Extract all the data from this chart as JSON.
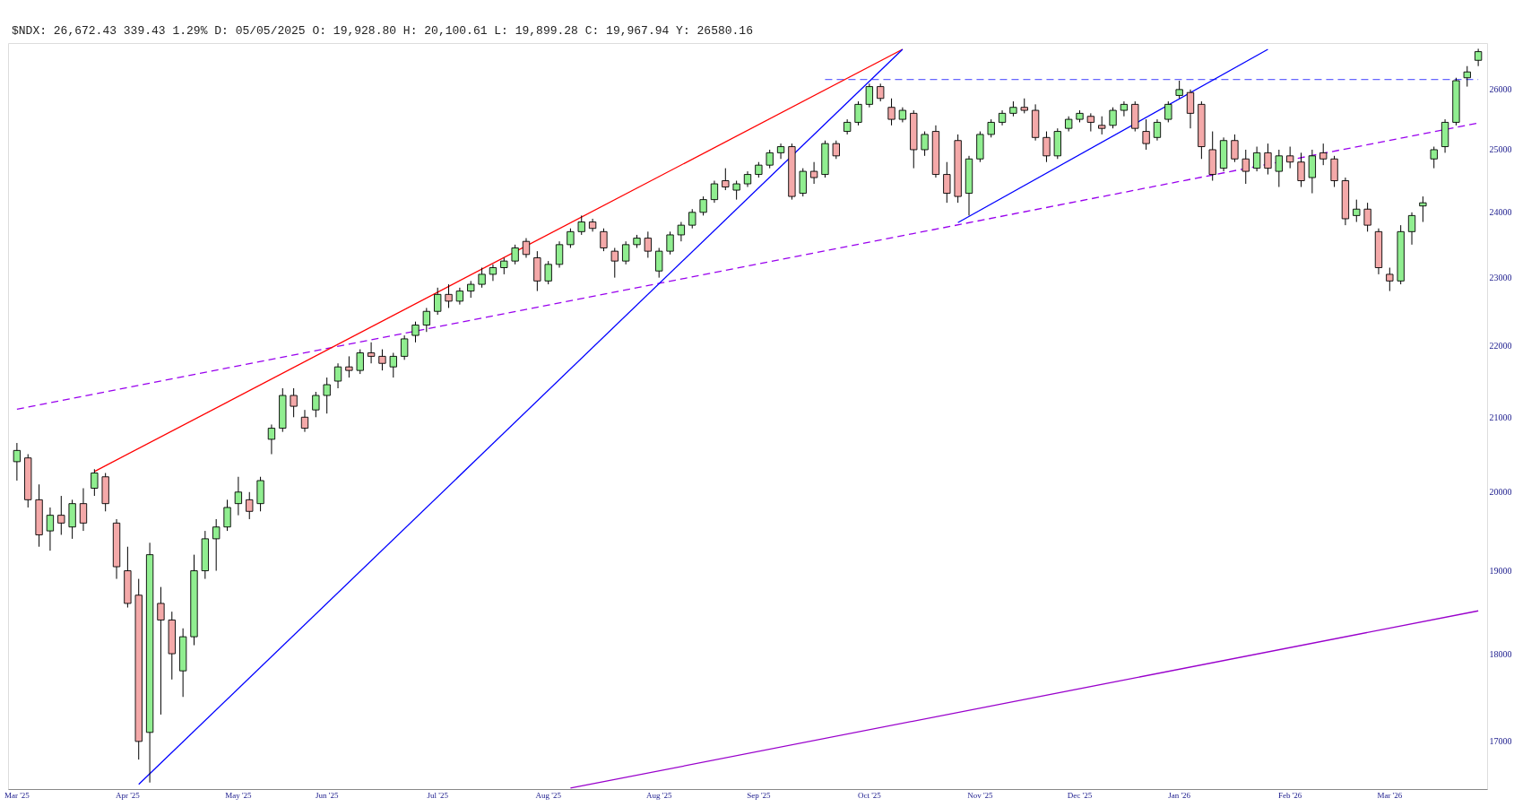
{
  "chart_data": {
    "type": "candlestick",
    "log": true,
    "annotations": [
      "$NDX: 26,672.43 339.43 1.29% D: 05/05/2025 O: 19,928.80 H: 20,100.61 L: 19,899.28 C: 19,967.94 Y:  26580.16"
    ],
    "categories": [
      "Mar '25",
      null,
      null,
      null,
      null,
      null,
      null,
      null,
      null,
      null,
      "Apr '25",
      null,
      null,
      null,
      null,
      null,
      null,
      null,
      null,
      null,
      "May '25",
      null,
      null,
      null,
      null,
      null,
      null,
      null,
      "Jun '25",
      null,
      null,
      null,
      null,
      null,
      null,
      null,
      null,
      null,
      "Jul '25",
      null,
      null,
      null,
      null,
      null,
      null,
      null,
      null,
      null,
      "Aug '25",
      null,
      null,
      null,
      null,
      null,
      null,
      null,
      null,
      null,
      "Aug '25",
      null,
      null,
      null,
      null,
      null,
      null,
      null,
      null,
      "Sep '25",
      null,
      null,
      null,
      null,
      null,
      null,
      null,
      null,
      null,
      "Oct '25",
      null,
      null,
      null,
      null,
      null,
      null,
      null,
      null,
      null,
      "Nov '25",
      null,
      null,
      null,
      null,
      null,
      null,
      null,
      null,
      "Dec '25",
      null,
      null,
      null,
      null,
      null,
      null,
      null,
      null,
      "Jan '26",
      null,
      null,
      null,
      null,
      null,
      null,
      null,
      null,
      null,
      "Feb '26",
      null,
      null,
      null,
      null,
      null,
      null,
      null,
      null,
      "Mar '26",
      null,
      null,
      null,
      null,
      null,
      null,
      null,
      null
    ],
    "ylim": [
      16480,
      26800
    ],
    "yticks": [
      17000,
      18000,
      19000,
      20000,
      21000,
      22000,
      23000,
      24000,
      25000,
      26000
    ],
    "series": [
      {
        "type": "line",
        "color": "#9900ee",
        "line_style": "dashed",
        "values": [
          21110,
          null,
          null,
          null,
          null,
          null,
          null,
          null,
          null,
          null,
          null,
          null,
          null,
          null,
          null,
          null,
          null,
          null,
          null,
          null,
          null,
          null,
          null,
          null,
          null,
          null,
          null,
          null,
          null,
          null,
          null,
          null,
          null,
          null,
          null,
          null,
          null,
          null,
          null,
          null,
          null,
          null,
          null,
          null,
          null,
          null,
          null,
          null,
          null,
          null,
          null,
          null,
          null,
          null,
          null,
          null,
          null,
          null,
          null,
          null,
          null,
          null,
          null,
          null,
          null,
          null,
          null,
          null,
          null,
          null,
          null,
          null,
          null,
          null,
          null,
          null,
          null,
          null,
          null,
          null,
          null,
          null,
          null,
          null,
          null,
          null,
          null,
          null,
          null,
          null,
          null,
          null,
          null,
          null,
          null,
          null,
          null,
          null,
          null,
          null,
          null,
          null,
          null,
          null,
          null,
          null,
          null,
          null,
          null,
          null,
          null,
          null,
          null,
          null,
          null,
          null,
          null,
          null,
          null,
          null,
          null,
          null,
          null,
          null,
          null,
          null,
          null,
          null,
          null,
          null,
          null,
          null,
          25440
        ]
      },
      {
        "type": "line",
        "color": "#9900cc",
        "line_style": "solid",
        "values": [
          null,
          null,
          null,
          null,
          null,
          null,
          null,
          null,
          null,
          null,
          null,
          null,
          null,
          null,
          null,
          null,
          null,
          null,
          null,
          null,
          null,
          null,
          null,
          null,
          null,
          null,
          null,
          null,
          null,
          null,
          null,
          null,
          null,
          null,
          null,
          null,
          null,
          null,
          null,
          null,
          null,
          null,
          null,
          null,
          null,
          null,
          null,
          null,
          null,
          null,
          16490,
          null,
          null,
          null,
          null,
          null,
          null,
          null,
          null,
          null,
          null,
          null,
          null,
          null,
          null,
          null,
          null,
          null,
          null,
          null,
          null,
          null,
          null,
          null,
          null,
          null,
          null,
          null,
          null,
          null,
          null,
          null,
          null,
          null,
          null,
          null,
          null,
          null,
          null,
          null,
          null,
          null,
          null,
          null,
          null,
          null,
          null,
          null,
          null,
          null,
          null,
          null,
          null,
          null,
          null,
          null,
          null,
          null,
          null,
          null,
          null,
          null,
          null,
          null,
          null,
          null,
          null,
          null,
          null,
          null,
          null,
          null,
          null,
          null,
          null,
          null,
          null,
          null,
          null,
          null,
          null,
          null,
          18510
        ]
      },
      {
        "type": "line",
        "color": "#6666ff",
        "line_style": "dashed",
        "values": [
          null,
          null,
          null,
          null,
          null,
          null,
          null,
          null,
          null,
          null,
          null,
          null,
          null,
          null,
          null,
          null,
          null,
          null,
          null,
          null,
          null,
          null,
          null,
          null,
          null,
          null,
          null,
          null,
          null,
          null,
          null,
          null,
          null,
          null,
          null,
          null,
          null,
          null,
          null,
          null,
          null,
          null,
          null,
          null,
          null,
          null,
          null,
          null,
          null,
          null,
          null,
          null,
          null,
          null,
          null,
          null,
          null,
          null,
          null,
          null,
          null,
          null,
          null,
          null,
          null,
          null,
          null,
          null,
          null,
          null,
          null,
          null,
          null,
          26170,
          null,
          null,
          null,
          null,
          null,
          null,
          null,
          null,
          null,
          null,
          null,
          null,
          null,
          null,
          null,
          null,
          null,
          null,
          null,
          null,
          null,
          null,
          null,
          null,
          null,
          null,
          null,
          null,
          null,
          null,
          null,
          null,
          null,
          null,
          null,
          null,
          null,
          null,
          null,
          null,
          null,
          null,
          null,
          null,
          null,
          null,
          null,
          null,
          null,
          null,
          null,
          null,
          null,
          null,
          null,
          null,
          null,
          null,
          26170
        ]
      },
      {
        "type": "line",
        "color": "#ff0000",
        "line_style": "solid",
        "values": [
          null,
          null,
          null,
          null,
          null,
          null,
          null,
          20270,
          null,
          null,
          null,
          null,
          null,
          null,
          null,
          null,
          null,
          null,
          null,
          null,
          null,
          null,
          null,
          null,
          null,
          null,
          null,
          null,
          null,
          null,
          null,
          null,
          null,
          null,
          null,
          null,
          null,
          null,
          null,
          null,
          null,
          null,
          null,
          null,
          null,
          null,
          null,
          null,
          null,
          null,
          null,
          null,
          null,
          null,
          null,
          null,
          null,
          null,
          null,
          null,
          null,
          null,
          null,
          null,
          null,
          null,
          null,
          null,
          null,
          null,
          null,
          null,
          null,
          null,
          null,
          null,
          null,
          null,
          null,
          null,
          26690,
          null,
          null,
          null,
          null,
          null,
          null,
          null,
          null,
          null,
          null,
          null,
          null,
          null,
          null,
          null,
          null,
          null,
          null,
          null,
          null,
          null,
          null,
          null,
          null,
          null,
          null,
          null,
          null,
          null,
          null,
          null,
          null,
          null,
          null,
          null,
          null,
          null,
          null,
          null,
          null,
          null,
          null,
          null,
          null,
          null,
          null,
          null,
          null,
          null,
          null,
          null,
          null
        ]
      },
      {
        "type": "line",
        "color": "#0000ff",
        "line_style": "solid",
        "values": [
          null,
          null,
          null,
          null,
          null,
          null,
          null,
          null,
          null,
          null,
          null,
          16530,
          null,
          null,
          null,
          null,
          null,
          null,
          null,
          null,
          null,
          null,
          null,
          null,
          null,
          null,
          null,
          null,
          null,
          null,
          null,
          null,
          null,
          null,
          null,
          null,
          null,
          null,
          null,
          null,
          null,
          null,
          null,
          null,
          null,
          null,
          null,
          null,
          null,
          null,
          null,
          null,
          null,
          null,
          null,
          null,
          null,
          null,
          null,
          null,
          null,
          null,
          null,
          null,
          null,
          null,
          null,
          null,
          null,
          null,
          null,
          null,
          null,
          null,
          null,
          null,
          null,
          null,
          null,
          null,
          26690,
          null,
          null,
          null,
          null,
          null,
          null,
          null,
          null,
          null,
          null,
          null,
          null,
          null,
          null,
          null,
          null,
          null,
          null,
          null,
          null,
          null,
          null,
          null,
          null,
          null,
          null,
          null,
          null,
          null,
          null,
          null,
          null,
          null,
          null,
          null,
          null,
          null,
          null,
          null,
          null,
          null,
          null,
          null,
          null,
          null,
          null,
          null,
          null,
          null,
          null,
          null,
          null
        ]
      },
      {
        "type": "line",
        "color": "#0000ff",
        "line_style": "solid",
        "values": [
          null,
          null,
          null,
          null,
          null,
          null,
          null,
          null,
          null,
          null,
          null,
          null,
          null,
          null,
          null,
          null,
          null,
          null,
          null,
          null,
          null,
          null,
          null,
          null,
          null,
          null,
          null,
          null,
          null,
          null,
          null,
          null,
          null,
          null,
          null,
          null,
          null,
          null,
          null,
          null,
          null,
          null,
          null,
          null,
          null,
          null,
          null,
          null,
          null,
          null,
          null,
          null,
          null,
          null,
          null,
          null,
          null,
          null,
          null,
          null,
          null,
          null,
          null,
          null,
          null,
          null,
          null,
          null,
          null,
          null,
          null,
          null,
          null,
          null,
          null,
          null,
          null,
          null,
          null,
          null,
          null,
          null,
          null,
          null,
          null,
          23840,
          null,
          null,
          null,
          null,
          null,
          null,
          null,
          null,
          null,
          null,
          null,
          null,
          null,
          null,
          null,
          null,
          null,
          null,
          null,
          null,
          null,
          null,
          null,
          null,
          null,
          null,
          null,
          26690,
          null,
          null,
          null,
          null,
          null,
          null,
          null,
          null,
          null,
          null,
          null,
          null,
          null,
          null,
          null,
          null,
          null,
          null,
          null
        ]
      },
      {
        "type": "candlestick",
        "colors": [
          "#90ee90",
          "#f4a9a9",
          "#f4a9a9",
          "#90ee90",
          "#f4a9a9",
          "#90ee90",
          "#f4a9a9",
          "#90ee90",
          "#f4a9a9",
          "#f4a9a9",
          "#f4a9a9",
          "#f4a9a9",
          "#90ee90",
          "#f4a9a9",
          "#f4a9a9",
          "#90ee90",
          "#90ee90",
          "#90ee90",
          "#90ee90",
          "#90ee90",
          "#90ee90",
          "#f4a9a9",
          "#90ee90",
          "#90ee90",
          "#90ee90",
          "#f4a9a9",
          "#f4a9a9",
          "#90ee90",
          "#90ee90",
          "#90ee90",
          "#f4a9a9",
          "#90ee90",
          "#f4a9a9",
          "#f4a9a9",
          "#90ee90",
          "#90ee90",
          "#90ee90",
          "#90ee90",
          "#90ee90",
          "#f4a9a9",
          "#90ee90",
          "#90ee90",
          "#90ee90",
          "#90ee90",
          "#90ee90",
          "#90ee90",
          "#f4a9a9",
          "#f4a9a9",
          "#90ee90",
          "#90ee90",
          "#90ee90",
          "#90ee90",
          "#f4a9a9",
          "#f4a9a9",
          "#f4a9a9",
          "#90ee90",
          "#90ee90",
          "#f4a9a9",
          "#90ee90",
          "#90ee90",
          "#90ee90",
          "#90ee90",
          "#90ee90",
          "#90ee90",
          "#f4a9a9",
          "#90ee90",
          "#90ee90",
          "#90ee90",
          "#90ee90",
          "#90ee90",
          "#f4a9a9",
          "#90ee90",
          "#f4a9a9",
          "#90ee90",
          "#f4a9a9",
          "#90ee90",
          "#90ee90",
          "#90ee90",
          "#f4a9a9",
          "#f4a9a9",
          "#90ee90",
          "#f4a9a9",
          "#90ee90",
          "#f4a9a9",
          "#f4a9a9",
          "#f4a9a9",
          "#90ee90",
          "#90ee90",
          "#90ee90",
          "#90ee90",
          "#90ee90",
          "#f4a9a9",
          "#f4a9a9",
          "#f4a9a9",
          "#90ee90",
          "#90ee90",
          "#90ee90",
          "#f4a9a9",
          "#f4a9a9",
          "#90ee90",
          "#90ee90",
          "#f4a9a9",
          "#f4a9a9",
          "#90ee90",
          "#90ee90",
          "#90ee90",
          "#f4a9a9",
          "#f4a9a9",
          "#f4a9a9",
          "#90ee90",
          "#f4a9a9",
          "#f4a9a9",
          "#90ee90",
          "#f4a9a9",
          "#90ee90",
          "#f4a9a9",
          "#f4a9a9",
          "#90ee90",
          "#f4a9a9",
          "#f4a9a9",
          "#f4a9a9",
          "#90ee90",
          "#f4a9a9",
          "#f4a9a9",
          "#f4a9a9",
          "#90ee90",
          "#90ee90",
          "#90ee90",
          "#90ee90",
          "#90ee90",
          "#90ee90",
          "#90ee90",
          "#90ee90"
        ],
        "ohlc": [
          [
            20400,
            20650,
            20150,
            20550
          ],
          [
            20450,
            20500,
            19800,
            19900
          ],
          [
            19900,
            20100,
            19300,
            19450
          ],
          [
            19500,
            19800,
            19250,
            19700
          ],
          [
            19700,
            19950,
            19450,
            19600
          ],
          [
            19550,
            19900,
            19400,
            19850
          ],
          [
            19850,
            20050,
            19500,
            19600
          ],
          [
            20050,
            20300,
            19950,
            20250
          ],
          [
            20200,
            20250,
            19750,
            19850
          ],
          [
            19600,
            19650,
            18900,
            19050
          ],
          [
            19000,
            19300,
            18550,
            18600
          ],
          [
            18700,
            18900,
            16800,
            17000
          ],
          [
            17100,
            19350,
            16550,
            19200
          ],
          [
            18600,
            18800,
            17300,
            18400
          ],
          [
            18400,
            18500,
            17700,
            18000
          ],
          [
            17800,
            18300,
            17500,
            18200
          ],
          [
            18200,
            19200,
            18100,
            19000
          ],
          [
            19000,
            19500,
            18900,
            19400
          ],
          [
            19400,
            19650,
            19000,
            19550
          ],
          [
            19550,
            19900,
            19500,
            19800
          ],
          [
            19850,
            20200,
            19700,
            20000
          ],
          [
            19900,
            20000,
            19650,
            19750
          ],
          [
            19850,
            20200,
            19750,
            20150
          ],
          [
            20700,
            20900,
            20500,
            20850
          ],
          [
            20850,
            21400,
            20800,
            21300
          ],
          [
            21300,
            21400,
            21000,
            21150
          ],
          [
            21000,
            21100,
            20800,
            20850
          ],
          [
            21100,
            21350,
            21000,
            21300
          ],
          [
            21300,
            21550,
            21050,
            21450
          ],
          [
            21500,
            21750,
            21400,
            21700
          ],
          [
            21700,
            21850,
            21550,
            21650
          ],
          [
            21650,
            21950,
            21600,
            21900
          ],
          [
            21900,
            22050,
            21750,
            21850
          ],
          [
            21850,
            21950,
            21650,
            21750
          ],
          [
            21700,
            21900,
            21550,
            21850
          ],
          [
            21850,
            22150,
            21800,
            22100
          ],
          [
            22150,
            22350,
            22050,
            22300
          ],
          [
            22300,
            22550,
            22200,
            22500
          ],
          [
            22500,
            22850,
            22450,
            22750
          ],
          [
            22750,
            22900,
            22550,
            22650
          ],
          [
            22650,
            22850,
            22600,
            22800
          ],
          [
            22800,
            22950,
            22700,
            22900
          ],
          [
            22900,
            23150,
            22850,
            23050
          ],
          [
            23050,
            23200,
            22950,
            23150
          ],
          [
            23150,
            23300,
            23050,
            23250
          ],
          [
            23250,
            23500,
            23200,
            23450
          ],
          [
            23550,
            23600,
            23300,
            23350
          ],
          [
            23300,
            23400,
            22800,
            22950
          ],
          [
            22950,
            23250,
            22900,
            23200
          ],
          [
            23200,
            23550,
            23150,
            23500
          ],
          [
            23500,
            23750,
            23450,
            23700
          ],
          [
            23700,
            23950,
            23650,
            23850
          ],
          [
            23850,
            23900,
            23700,
            23750
          ],
          [
            23700,
            23750,
            23400,
            23450
          ],
          [
            23400,
            23450,
            23000,
            23250
          ],
          [
            23250,
            23550,
            23200,
            23500
          ],
          [
            23500,
            23650,
            23450,
            23600
          ],
          [
            23600,
            23700,
            23300,
            23400
          ],
          [
            23100,
            23450,
            23000,
            23400
          ],
          [
            23400,
            23700,
            23350,
            23650
          ],
          [
            23650,
            23850,
            23550,
            23800
          ],
          [
            23800,
            24050,
            23750,
            24000
          ],
          [
            24000,
            24250,
            23950,
            24200
          ],
          [
            24200,
            24500,
            24150,
            24450
          ],
          [
            24500,
            24700,
            24350,
            24400
          ],
          [
            24350,
            24500,
            24200,
            24450
          ],
          [
            24450,
            24650,
            24400,
            24600
          ],
          [
            24600,
            24800,
            24550,
            24750
          ],
          [
            24750,
            25000,
            24700,
            24950
          ],
          [
            24950,
            25100,
            24850,
            25050
          ],
          [
            25050,
            25100,
            24200,
            24250
          ],
          [
            24300,
            24700,
            24250,
            24650
          ],
          [
            24650,
            24800,
            24450,
            24550
          ],
          [
            24600,
            25150,
            24550,
            25100
          ],
          [
            25100,
            25150,
            24850,
            24900
          ],
          [
            25300,
            25500,
            25250,
            25450
          ],
          [
            25450,
            25800,
            25400,
            25750
          ],
          [
            25750,
            26100,
            25700,
            26050
          ],
          [
            26050,
            26100,
            25800,
            25850
          ],
          [
            25700,
            25850,
            25400,
            25500
          ],
          [
            25500,
            25700,
            25450,
            25650
          ],
          [
            25600,
            25650,
            24700,
            25000
          ],
          [
            25000,
            25300,
            24900,
            25250
          ],
          [
            25300,
            25400,
            24550,
            24600
          ],
          [
            24600,
            24800,
            24150,
            24300
          ],
          [
            25150,
            25250,
            24150,
            24250
          ],
          [
            24300,
            24900,
            23950,
            24850
          ],
          [
            24850,
            25300,
            24800,
            25250
          ],
          [
            25250,
            25500,
            25200,
            25450
          ],
          [
            25450,
            25650,
            25400,
            25600
          ],
          [
            25600,
            25800,
            25550,
            25700
          ],
          [
            25700,
            25850,
            25600,
            25650
          ],
          [
            25650,
            25750,
            25150,
            25200
          ],
          [
            25200,
            25300,
            24800,
            24900
          ],
          [
            24900,
            25350,
            24850,
            25300
          ],
          [
            25350,
            25550,
            25300,
            25500
          ],
          [
            25500,
            25650,
            25450,
            25600
          ],
          [
            25550,
            25600,
            25300,
            25450
          ],
          [
            25400,
            25550,
            25250,
            25350
          ],
          [
            25400,
            25700,
            25350,
            25650
          ],
          [
            25650,
            25800,
            25550,
            25750
          ],
          [
            25750,
            25800,
            25300,
            25350
          ],
          [
            25300,
            25500,
            25000,
            25100
          ],
          [
            25200,
            25500,
            25150,
            25450
          ],
          [
            25500,
            25800,
            25450,
            25750
          ],
          [
            25900,
            26150,
            25850,
            26000
          ],
          [
            25950,
            26000,
            25350,
            25600
          ],
          [
            25750,
            25800,
            24850,
            25050
          ],
          [
            25000,
            25300,
            24500,
            24600
          ],
          [
            24700,
            25200,
            24650,
            25150
          ],
          [
            25150,
            25250,
            24800,
            24850
          ],
          [
            24850,
            25000,
            24450,
            24650
          ],
          [
            24700,
            25050,
            24650,
            24950
          ],
          [
            24950,
            25100,
            24600,
            24700
          ],
          [
            24650,
            25000,
            24400,
            24900
          ],
          [
            24900,
            25050,
            24700,
            24800
          ],
          [
            24800,
            24950,
            24400,
            24500
          ],
          [
            24550,
            25000,
            24300,
            24900
          ],
          [
            24950,
            25100,
            24750,
            24850
          ],
          [
            24850,
            24900,
            24400,
            24500
          ],
          [
            24500,
            24550,
            23800,
            23900
          ],
          [
            23950,
            24200,
            23850,
            24050
          ],
          [
            24050,
            24150,
            23700,
            23800
          ],
          [
            23700,
            23750,
            23050,
            23150
          ],
          [
            23050,
            23150,
            22800,
            22950
          ],
          [
            22950,
            23800,
            22900,
            23700
          ],
          [
            23700,
            24000,
            23500,
            23950
          ],
          [
            24100,
            24250,
            23850,
            24150
          ],
          [
            24850,
            25050,
            24700,
            25000
          ],
          [
            25050,
            25500,
            24950,
            25450
          ],
          [
            25450,
            26200,
            25400,
            26150
          ],
          [
            26200,
            26400,
            26050,
            26300
          ],
          [
            26500,
            26700,
            26400,
            26650
          ]
        ]
      }
    ]
  }
}
